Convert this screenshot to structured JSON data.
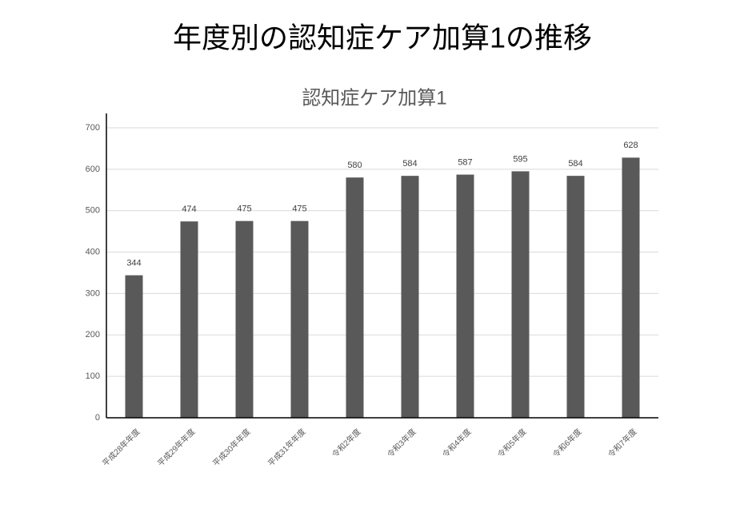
{
  "page_title": "年度別の認知症ケア加算1の推移",
  "chart_data": {
    "type": "bar",
    "title": "認知症ケア加算1",
    "categories": [
      "平成28年年度",
      "平成29年年度",
      "平成30年年度",
      "平成31年年度",
      "令和2年度",
      "令和3年度",
      "令和4年度",
      "令和5年度",
      "令和6年度",
      "令和7年度"
    ],
    "values": [
      344,
      474,
      475,
      475,
      580,
      584,
      587,
      595,
      584,
      628
    ],
    "color": "#595959",
    "ylim": [
      0,
      700
    ],
    "yticks": [
      0,
      100,
      200,
      300,
      400,
      500,
      600,
      700
    ],
    "grid": true
  }
}
